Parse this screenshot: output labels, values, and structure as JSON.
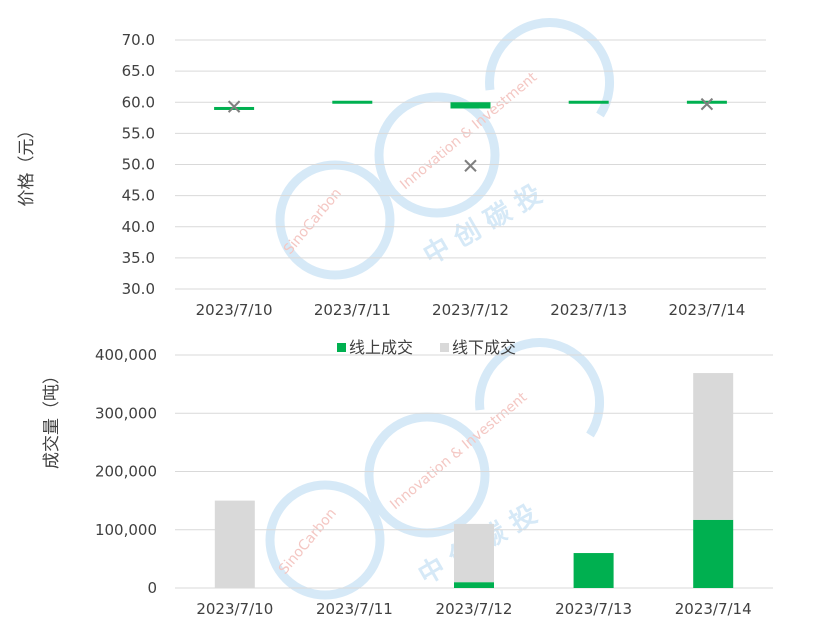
{
  "colors": {
    "online": "#00b050",
    "offline": "#d9d9d9",
    "marker": "#7f7f7f",
    "grid": "#d9d9d9",
    "watermark": "#d6e9f7",
    "watermark_text": "#f4c7c3"
  },
  "watermark": {
    "brand_en": "SinoCarbon",
    "line1": "Innovation & Investment",
    "brand_cn": "中 创 碳 投"
  },
  "chart_data": [
    {
      "type": "candlestick",
      "ylabel": "价格（元）",
      "ylim": [
        30,
        70
      ],
      "yticks": [
        "30.0",
        "35.0",
        "40.0",
        "45.0",
        "50.0",
        "55.0",
        "60.0",
        "65.0",
        "70.0"
      ],
      "categories": [
        "2023/7/10",
        "2023/7/11",
        "2023/7/12",
        "2023/7/13",
        "2023/7/14"
      ],
      "open": [
        59.0,
        60.0,
        60.0,
        60.0,
        60.0
      ],
      "close": [
        59.0,
        60.0,
        59.0,
        60.0,
        60.0
      ],
      "x_markers": [
        59.3,
        null,
        49.8,
        null,
        59.7
      ],
      "grid": true
    },
    {
      "type": "stacked-bar",
      "ylabel": "成交量（吨）",
      "ylim": [
        0,
        400000
      ],
      "yticks": [
        "0",
        "100,000",
        "200,000",
        "300,000",
        "400,000"
      ],
      "categories": [
        "2023/7/10",
        "2023/7/11",
        "2023/7/12",
        "2023/7/13",
        "2023/7/14"
      ],
      "legend_position": "top",
      "series": [
        {
          "name": "线上成交",
          "values": [
            0,
            0,
            10000,
            60000,
            117000
          ]
        },
        {
          "name": "线下成交",
          "values": [
            150000,
            0,
            100000,
            0,
            252000
          ]
        }
      ],
      "grid": true
    }
  ]
}
